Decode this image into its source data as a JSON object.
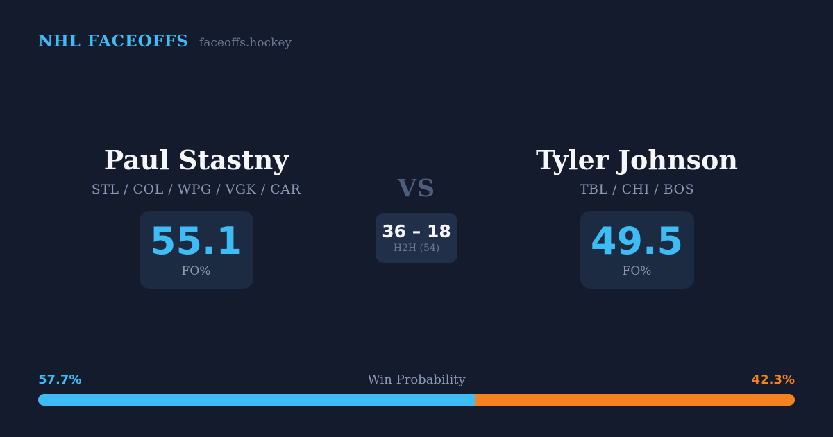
{
  "header": {
    "brand": "NHL FACEOFFS",
    "site": "faceoffs.hockey"
  },
  "matchup": {
    "vs_label": "VS",
    "player_left": {
      "name": "Paul Stastny",
      "teams": "STL / COL / WPG / VGK / CAR",
      "stat_value": "55.1",
      "stat_label": "FO%"
    },
    "player_right": {
      "name": "Tyler Johnson",
      "teams": "TBL / CHI / BOS",
      "stat_value": "49.5",
      "stat_label": "FO%"
    },
    "head_to_head": {
      "score": "36 – 18",
      "label": "H2H (54)"
    }
  },
  "win_probability": {
    "label": "Win Probability",
    "left_pct_label": "57.7%",
    "right_pct_label": "42.3%",
    "left_value": 57.7,
    "right_value": 42.3
  },
  "colors": {
    "background": "#131B2D",
    "card": "#1C2A42",
    "card_light": "#212F49",
    "accent_blue": "#3EBCF6",
    "accent_orange": "#F5821E",
    "text_primary": "#F4F6FA",
    "text_muted": "#8B99B4",
    "text_dim": "#6B7890",
    "vs": "#4E5D7A"
  }
}
